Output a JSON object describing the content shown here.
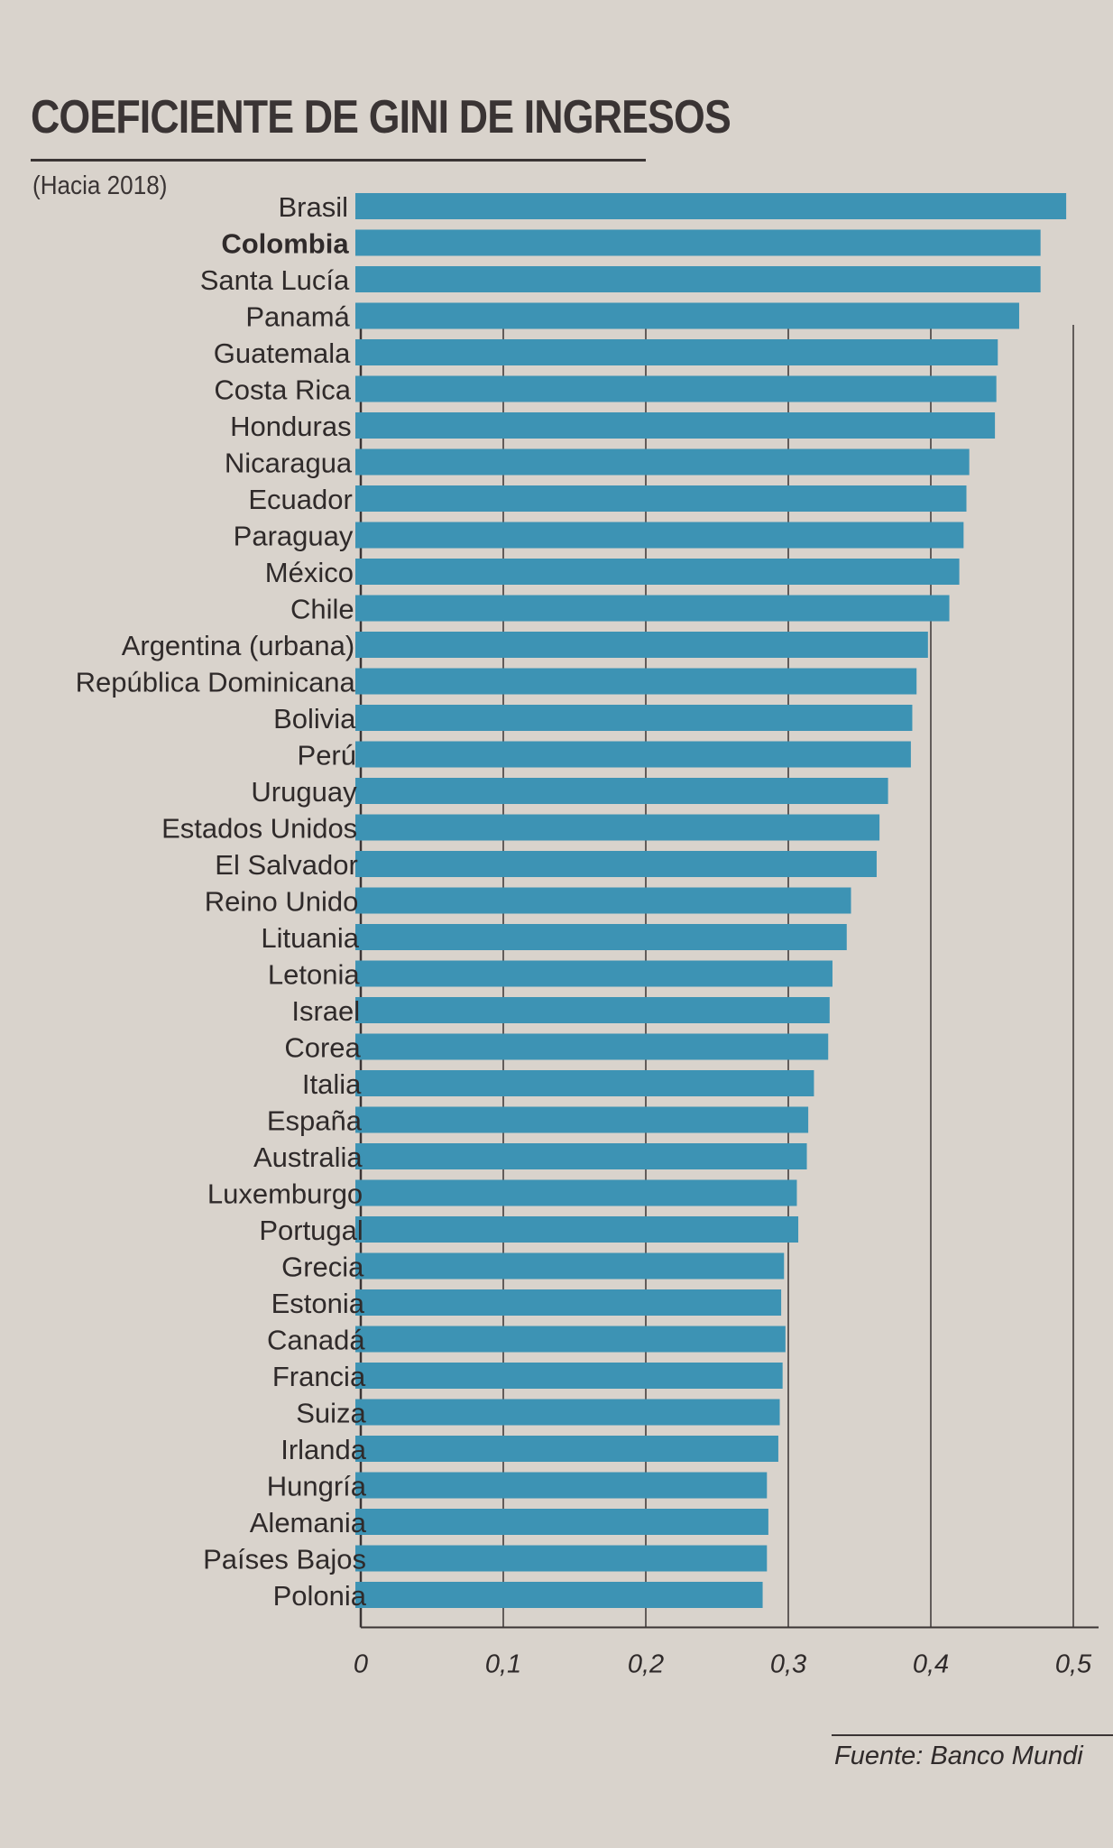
{
  "chart_data": {
    "type": "bar",
    "orientation": "horizontal",
    "title": "COEFICIENTE DE GINI DE INGRESOS",
    "subtitle": "(Hacia 2018)",
    "source": "Fuente: Banco Mundi",
    "categories": [
      "Brasil",
      "Colombia",
      "Santa Lucía",
      "Panamá",
      "Guatemala",
      "Costa Rica",
      "Honduras",
      "Nicaragua",
      "Ecuador",
      "Paraguay",
      "México",
      "Chile",
      "Argentina (urbana)",
      "República Dominicana",
      "Bolivia",
      "Perú",
      "Uruguay",
      "Estados Unidos",
      "El Salvador",
      "Reino Unido",
      "Lituania",
      "Letonia",
      "Israel",
      "Corea",
      "Italia",
      "España",
      "Australia",
      "Luxemburgo",
      "Portugal",
      "Grecia",
      "Estonia",
      "Canadá",
      "Francia",
      "Suiza",
      "Irlanda",
      "Hungría",
      "Alemania",
      "Países Bajos",
      "Polonia"
    ],
    "highlight": [
      "Colombia"
    ],
    "values": [
      0.495,
      0.477,
      0.477,
      0.462,
      0.447,
      0.446,
      0.445,
      0.427,
      0.425,
      0.423,
      0.42,
      0.413,
      0.398,
      0.39,
      0.387,
      0.386,
      0.37,
      0.364,
      0.362,
      0.344,
      0.341,
      0.331,
      0.329,
      0.328,
      0.318,
      0.314,
      0.313,
      0.306,
      0.307,
      0.297,
      0.295,
      0.298,
      0.296,
      0.294,
      0.293,
      0.285,
      0.286,
      0.285,
      0.282
    ],
    "xlim": [
      0,
      0.5
    ],
    "ticks": [
      "0",
      "0,1",
      "0,2",
      "0,3",
      "0,4",
      "0,5"
    ],
    "tick_values": [
      0,
      0.1,
      0.2,
      0.3,
      0.4,
      0.5
    ],
    "grid": true,
    "colors": {
      "bar": "#3d93b4",
      "background": "#d9d3cc",
      "text": "#2f2a2a",
      "grid": "#3a3434"
    }
  }
}
